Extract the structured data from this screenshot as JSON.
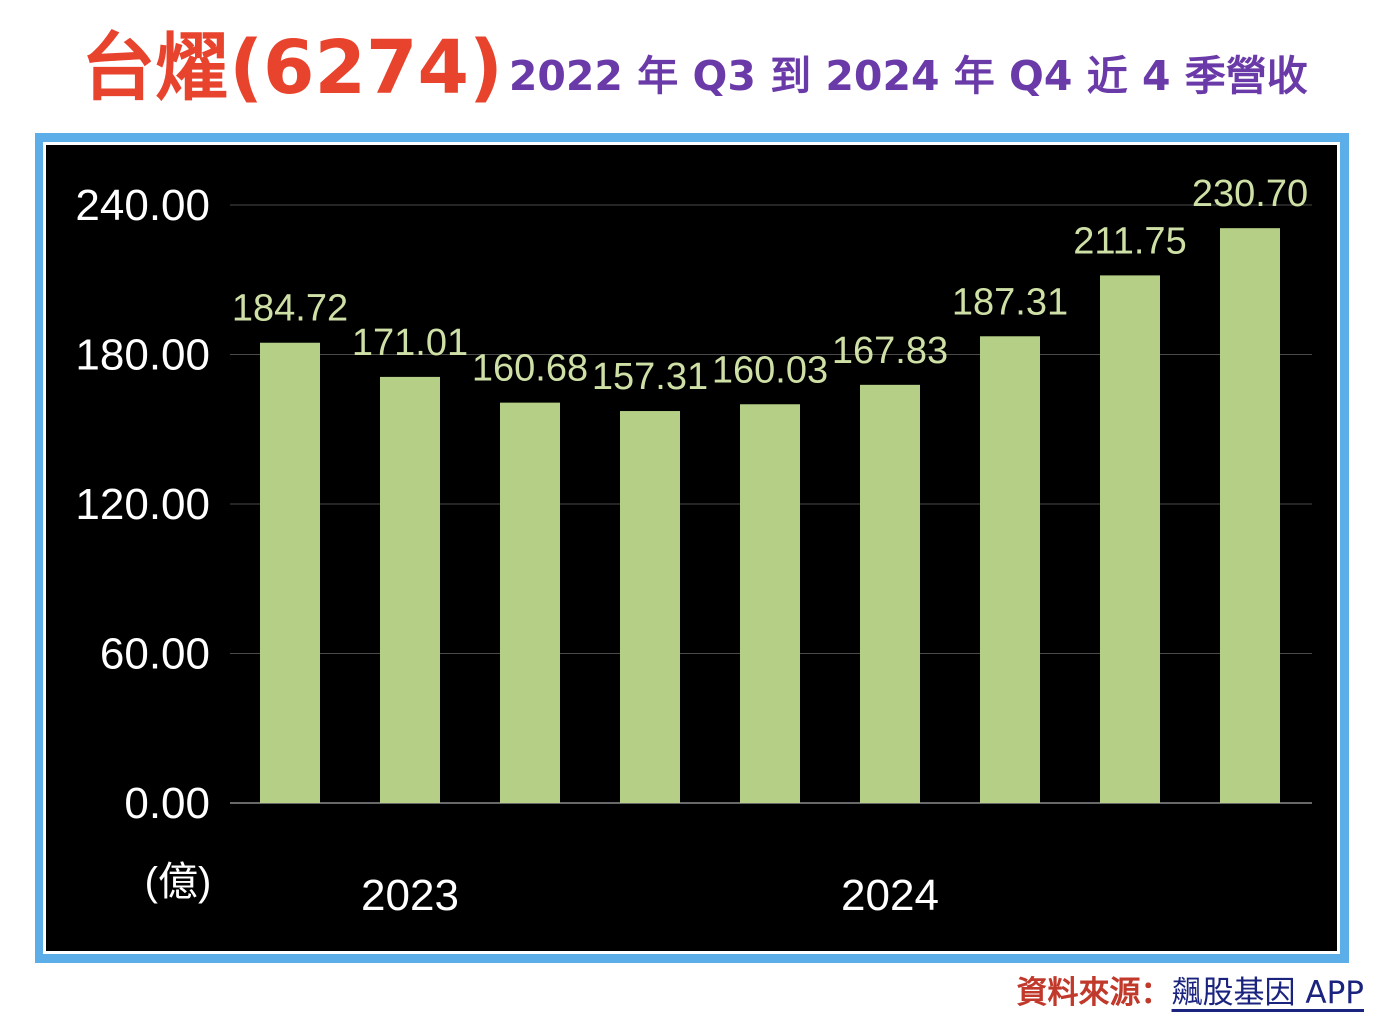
{
  "title": {
    "main": "台燿(6274)",
    "subtitle": "2022 年 Q3 到 2024 年 Q4 近 4 季營收"
  },
  "source": {
    "label": "資料來源：",
    "value": "飆股基因 APP"
  },
  "colors": {
    "title": "#e8432d",
    "subtitle": "#6a3aa8",
    "frame": "#5baee8",
    "background": "#000000",
    "bar": "#b5cf86",
    "data_label": "#cfe0a6",
    "axis_text": "#ffffff",
    "source_label": "#c0392b"
  },
  "chart_data": {
    "type": "bar",
    "categories": [
      "",
      "",
      "",
      "",
      "",
      "",
      "",
      "",
      ""
    ],
    "values": [
      184.72,
      171.01,
      160.68,
      157.31,
      160.03,
      167.83,
      187.31,
      211.75,
      230.7
    ],
    "value_labels": [
      "184.72",
      "171.01",
      "160.68",
      "157.31",
      "160.03",
      "167.83",
      "187.31",
      "211.75",
      "230.70"
    ],
    "year_labels": [
      {
        "text": "2023",
        "center_index": 1
      },
      {
        "text": "2024",
        "center_index": 5
      }
    ],
    "y_ticks": [
      0,
      60,
      120,
      180,
      240
    ],
    "y_tick_labels": [
      "0.00",
      "60.00",
      "120.00",
      "180.00",
      "240.00"
    ],
    "ylim": [
      0,
      240
    ],
    "ylabel": "(億)",
    "grid": true
  }
}
